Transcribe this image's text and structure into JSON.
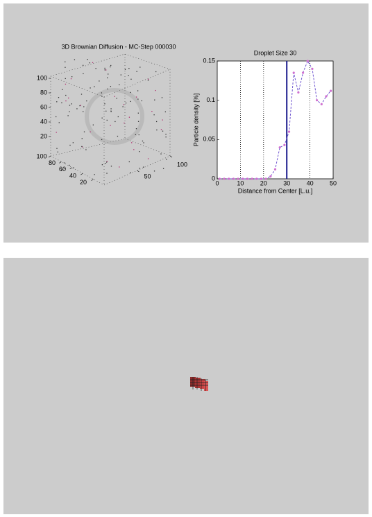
{
  "chart_data": [
    {
      "type": "scatter3d",
      "title": "3D Brownian Diffusion - MC-Step 000030",
      "xlim": [
        0,
        100
      ],
      "xticks": [
        50,
        100
      ],
      "ylim": [
        0,
        100
      ],
      "yticks": [
        20,
        40,
        60,
        80,
        100
      ],
      "zlim": [
        0,
        100
      ],
      "zticks": [
        20,
        40,
        60,
        80,
        100
      ],
      "grid": true
    },
    {
      "type": "line",
      "title": "Droplet Size 30",
      "xlabel": "Distance from  Center [L.u.]",
      "ylabel": "Particle density [%]",
      "x": [
        1,
        3,
        5,
        7,
        9,
        11,
        13,
        15,
        17,
        19,
        21,
        23,
        25,
        27,
        29,
        31,
        33,
        35,
        37,
        39,
        41,
        43,
        45,
        47,
        49
      ],
      "series": [
        {
          "color": "#6f55d0",
          "marker_color": "#d070d0",
          "values": [
            0,
            0,
            0,
            0,
            0,
            0,
            0,
            0,
            0,
            0,
            0,
            0.003,
            0.012,
            0.04,
            0.043,
            0.06,
            0.135,
            0.11,
            0.135,
            0.15,
            0.14,
            0.1,
            0.095,
            0.105,
            0.112
          ]
        }
      ],
      "xlim": [
        0,
        50
      ],
      "xticks": [
        0,
        10,
        20,
        30,
        40,
        50
      ],
      "ylim": [
        0,
        0.15
      ],
      "yticks": [
        0,
        0.05,
        0.1,
        0.15
      ],
      "grid": true,
      "vline": {
        "x": 30,
        "color": "#1a1a8c"
      }
    }
  ]
}
